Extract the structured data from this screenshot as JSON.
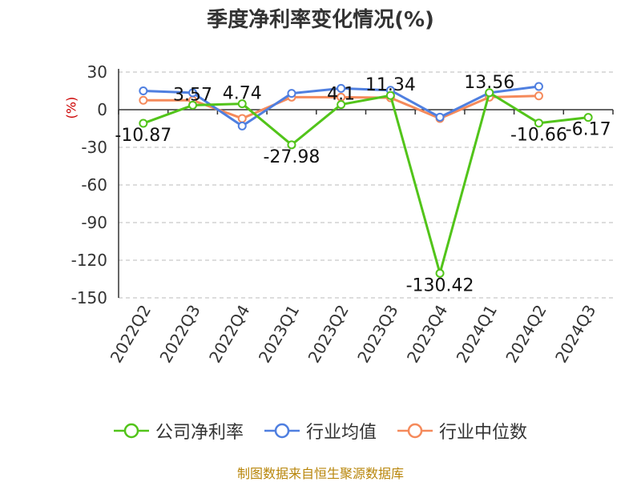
{
  "title": "季度净利率变化情况(%)",
  "footer": "制图数据来自恒生聚源数据库",
  "colors": {
    "footer": "#b8860b",
    "ylabel": "#cc0000",
    "grid": "#bbbbbb",
    "axis": "#333333"
  },
  "chart_data": {
    "type": "line",
    "title": "季度净利率变化情况(%)",
    "ylabel": "(%)",
    "xlabel": "",
    "categories": [
      "2022Q2",
      "2022Q3",
      "2022Q4",
      "2023Q1",
      "2023Q2",
      "2023Q3",
      "2023Q4",
      "2024Q1",
      "2024Q2",
      "2024Q3"
    ],
    "ylim": [
      -150,
      30
    ],
    "yticks": [
      30,
      0,
      -30,
      -60,
      -90,
      -120,
      -150
    ],
    "ytick_labels": [
      "30",
      "0",
      "-30",
      "-60",
      "-90",
      "-120",
      "-150"
    ],
    "grid": true,
    "legend_position": "bottom",
    "series": [
      {
        "name": "公司净利率",
        "color": "#52c41a",
        "values": [
          -10.87,
          3.57,
          4.74,
          -27.98,
          4.1,
          11.34,
          -130.42,
          13.56,
          -10.66,
          -6.17
        ],
        "labels": [
          "-10.87",
          "3.57",
          "4.74",
          "-27.98",
          "4.1",
          "11.34",
          "-130.42",
          "13.56",
          "-10.66",
          "-6.17"
        ]
      },
      {
        "name": "行业均值",
        "color": "#4f7fe0",
        "values": [
          15,
          13.5,
          -13,
          13,
          17,
          15.5,
          -6,
          13.5,
          18.5,
          null
        ]
      },
      {
        "name": "行业中位数",
        "color": "#f58a5b",
        "values": [
          7.5,
          7.5,
          -7,
          10,
          10,
          9.5,
          -7,
          10,
          11,
          null
        ]
      }
    ]
  }
}
